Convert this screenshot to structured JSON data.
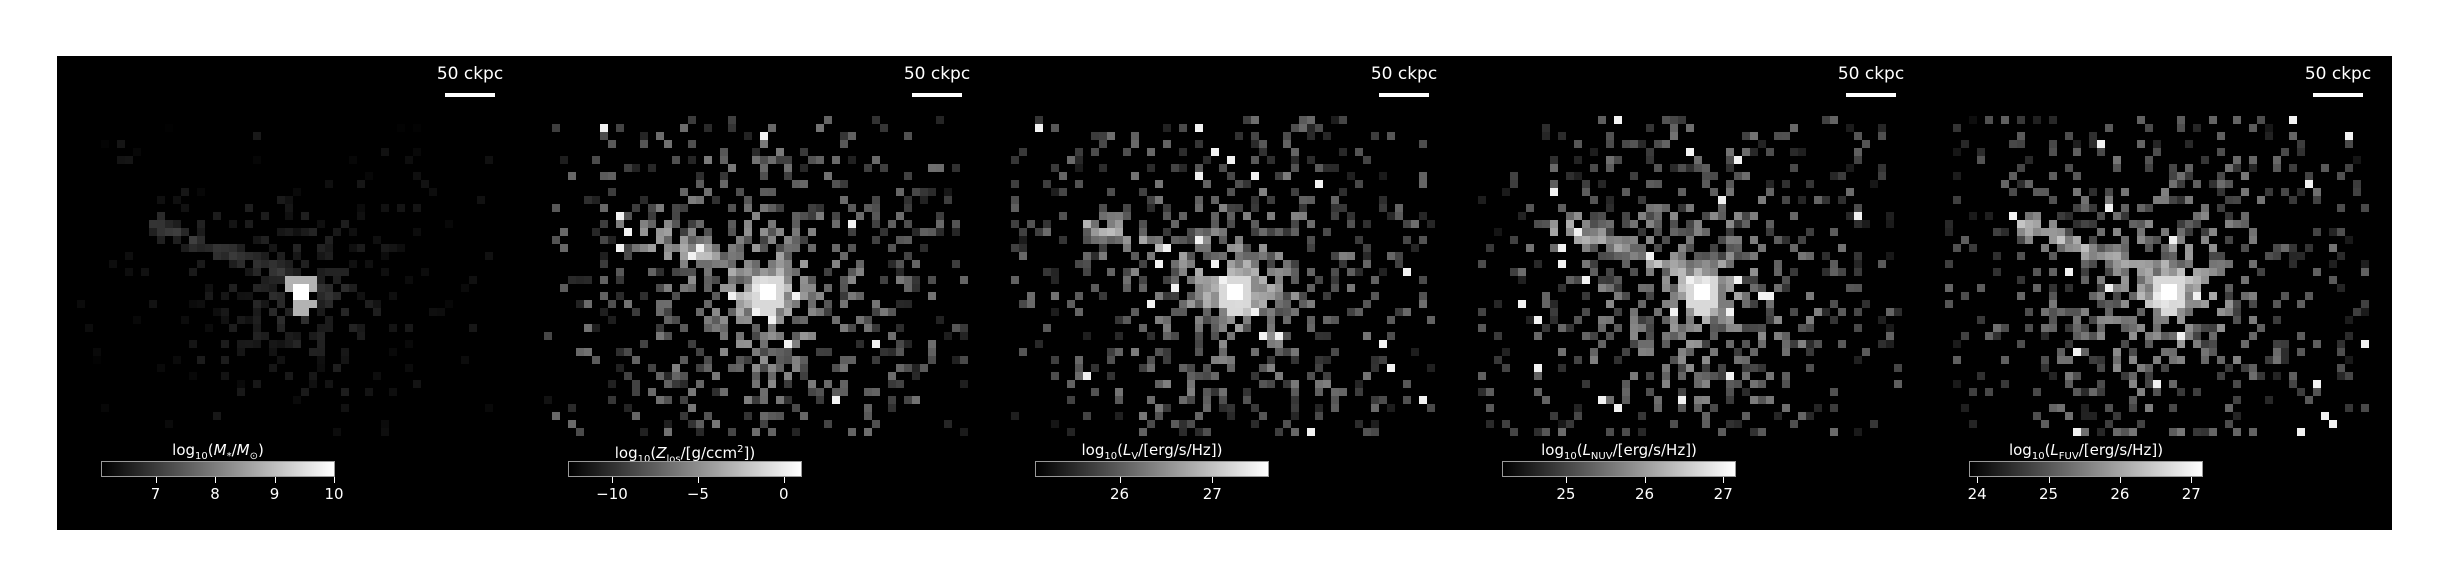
{
  "figure": {
    "background": "#000000",
    "scalebar_label": "50 ckpc",
    "panels": [
      {
        "id": "stellar-mass",
        "colorbar": {
          "label_parts": {
            "pre": "log",
            "sub1": "10",
            "mid": "(M",
            "sub2": "*",
            "mid2": "/M",
            "sub3": "⊙",
            "post": ")"
          },
          "label_text": "log10(M*/M⊙)",
          "range": [
            6.1,
            10.0
          ],
          "ticks": [
            "7",
            "8",
            "9",
            "10"
          ],
          "tick_values": [
            7,
            8,
            9,
            10
          ]
        },
        "map": {
          "center_brightness": 1.0,
          "spread": "compact"
        }
      },
      {
        "id": "metallicity",
        "colorbar": {
          "label_text": "log10(Zlos/[g/ccm2])",
          "range": [
            -12.5,
            1.0
          ],
          "ticks": [
            "−10",
            "−5",
            "0"
          ],
          "tick_values": [
            -10,
            -5,
            0
          ]
        },
        "map": {
          "center_brightness": 1.0,
          "spread": "extended"
        }
      },
      {
        "id": "v-band",
        "colorbar": {
          "label_text": "log10(LV/[erg/s/Hz])",
          "range": [
            25.1,
            27.6
          ],
          "ticks": [
            "26",
            "27"
          ],
          "tick_values": [
            26,
            27
          ]
        },
        "map": {
          "center_brightness": 0.9,
          "spread": "extended"
        }
      },
      {
        "id": "nuv",
        "colorbar": {
          "label_text": "log10(LNUV/[erg/s/Hz])",
          "range": [
            24.2,
            27.15
          ],
          "ticks": [
            "25",
            "26",
            "27"
          ],
          "tick_values": [
            25,
            26,
            27
          ]
        },
        "map": {
          "center_brightness": 0.9,
          "spread": "extended"
        }
      },
      {
        "id": "fuv",
        "colorbar": {
          "label_text": "log10(LFUV/[erg/s/Hz])",
          "range": [
            23.9,
            27.15
          ],
          "ticks": [
            "24",
            "25",
            "26",
            "27"
          ],
          "tick_values": [
            24,
            25,
            26,
            27
          ]
        },
        "map": {
          "center_brightness": 0.9,
          "spread": "extended"
        }
      }
    ]
  }
}
